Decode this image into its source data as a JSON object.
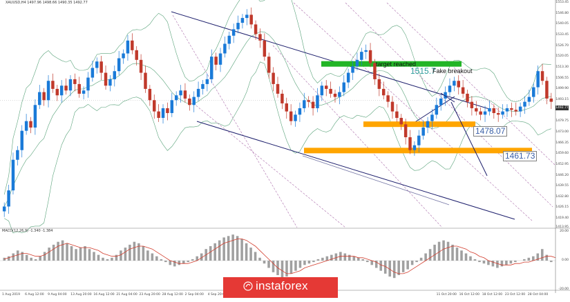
{
  "chart_data": [
    {
      "type": "candlestick",
      "symbol_header": "XAUUSD,H4 1497.96 1498.66 1490.35 1492.77",
      "instrument": "XAUUSD",
      "timeframe": "H4",
      "ylim": [
        1413.95,
        1553.45
      ],
      "y_ticks": [
        "1553.45",
        "1546.80",
        "1540.05",
        "1533.45",
        "1526.70",
        "1520.05",
        "1513.30",
        "1506.55",
        "1499.90",
        "1493.15",
        "1486.50",
        "1479.75",
        "1473.00",
        "1466.35",
        "1459.60",
        "1452.95",
        "1446.20",
        "1439.55",
        "1432.80",
        "1426.15",
        "1419.40",
        "1413.95"
      ],
      "x_ticks": [
        "1 Aug 2019",
        "6 Aug 12:00",
        "9 Aug 04:00",
        "13 Aug 20:00",
        "16 Aug 12:00",
        "21 Aug 04:00",
        "23 Aug 20:00",
        "28 Aug 12:00",
        "2 Sep 04:00",
        "4 Sep 20:00",
        "9 Sep 12:00",
        "12 Sep 04:00",
        "",
        "",
        "",
        "",
        "",
        "",
        "",
        "11 Oct 20:00",
        "16 Oct 12:00",
        "18 Oct 12:00",
        "23 Oct 12:00",
        "28 Oct 04:00"
      ],
      "last_price": "1492.77",
      "close_path": [
        1427,
        1437,
        1456,
        1462,
        1474,
        1480,
        1476,
        1490,
        1498,
        1493,
        1505,
        1500,
        1496,
        1502,
        1499,
        1506,
        1503,
        1497,
        1499,
        1507,
        1513,
        1517,
        1510,
        1502,
        1506,
        1511,
        1519,
        1522,
        1530,
        1524,
        1518,
        1510,
        1500,
        1493,
        1486,
        1482,
        1488,
        1485,
        1493,
        1496,
        1499,
        1494,
        1490,
        1495,
        1500,
        1503,
        1506,
        1520,
        1515,
        1522,
        1528,
        1533,
        1537,
        1541,
        1544,
        1546,
        1540,
        1534,
        1530,
        1520,
        1510,
        1503,
        1497,
        1491,
        1486,
        1480,
        1484,
        1488,
        1493,
        1492,
        1488,
        1496,
        1502,
        1500,
        1497,
        1495,
        1498,
        1504,
        1510,
        1514,
        1518,
        1523,
        1524,
        1516,
        1506,
        1500,
        1496,
        1492,
        1486,
        1482,
        1478,
        1470,
        1462,
        1465,
        1471,
        1476,
        1480,
        1484,
        1490,
        1494,
        1498,
        1502,
        1505,
        1501,
        1497,
        1492,
        1488,
        1486,
        1484,
        1486,
        1488,
        1485,
        1484,
        1486,
        1488,
        1487,
        1486,
        1489,
        1492,
        1495,
        1501,
        1511,
        1505,
        1494,
        1492
      ],
      "levels": [
        {
          "label": "1478.07",
          "value": 1478.07
        },
        {
          "label": "1461.73",
          "value": 1461.73
        }
      ],
      "target_zone": {
        "value": 1515.5,
        "label_price": "1515.7",
        "annotation": "target reached"
      },
      "breakout_annotation": "Fake breakout",
      "colors": {
        "bull": "#1a7ad8",
        "bear": "#c0392b",
        "bollinger": "#2e8b57",
        "channel": "#1b1d6b",
        "pitchfork": "#8e3b8e",
        "level": "#ffa500",
        "target": "#22b526"
      }
    },
    {
      "type": "macd",
      "label": "MACD(12,26,9) -1.340 -1.384",
      "ylim": [
        -20,
        20
      ],
      "y_ticks": [
        "20.00",
        "0.00",
        "-20.00"
      ],
      "histogram": [
        2,
        3,
        5,
        7,
        6,
        4,
        2,
        1,
        3,
        6,
        9,
        11,
        13,
        14,
        12,
        10,
        8,
        9,
        10,
        8,
        6,
        4,
        2,
        1,
        2,
        4,
        7,
        9,
        11,
        13,
        12,
        10,
        7,
        5,
        3,
        1,
        -1,
        -3,
        -4,
        -3,
        -2,
        -1,
        1,
        3,
        5,
        8,
        10,
        12,
        14,
        16,
        17,
        18,
        17,
        15,
        12,
        9,
        6,
        2,
        -2,
        -5,
        -8,
        -10,
        -12,
        -11,
        -9,
        -7,
        -5,
        -3,
        -2,
        -1,
        1,
        2,
        3,
        4,
        5,
        6,
        5,
        4,
        3,
        2,
        1,
        -1,
        -3,
        -5,
        -7,
        -9,
        -11,
        -12,
        -10,
        -8,
        -6,
        -3,
        -1,
        2,
        5,
        8,
        11,
        13,
        14,
        13,
        11,
        9,
        7,
        5,
        3,
        1,
        -1,
        -2,
        -3,
        -4,
        -5,
        -4,
        -3,
        -2,
        -1,
        0,
        1,
        2,
        3,
        5,
        8,
        4,
        -1
      ],
      "signal": [
        1,
        2,
        3,
        4,
        5,
        5,
        4,
        3,
        3,
        4,
        6,
        8,
        10,
        11,
        12,
        11,
        10,
        9,
        9,
        9,
        8,
        7,
        5,
        4,
        3,
        3,
        4,
        6,
        8,
        9,
        10,
        10,
        9,
        8,
        6,
        4,
        2,
        0,
        -1,
        -2,
        -2,
        -2,
        -1,
        0,
        2,
        4,
        6,
        8,
        10,
        12,
        13,
        14,
        15,
        15,
        14,
        12,
        10,
        7,
        4,
        1,
        -2,
        -5,
        -7,
        -9,
        -9,
        -8,
        -7,
        -5,
        -4,
        -3,
        -2,
        -1,
        0,
        1,
        2,
        3,
        3,
        3,
        3,
        2,
        2,
        1,
        0,
        -1,
        -3,
        -4,
        -6,
        -8,
        -9,
        -9,
        -8,
        -6,
        -4,
        -2,
        0,
        2,
        4,
        6,
        8,
        9,
        10,
        10,
        9,
        8,
        6,
        5,
        3,
        2,
        0,
        -1,
        -2,
        -3,
        -3,
        -3,
        -2,
        -2,
        -1,
        -1,
        0,
        1,
        2,
        3,
        3,
        2
      ]
    }
  ],
  "watermark": {
    "brand": "instaforex"
  }
}
